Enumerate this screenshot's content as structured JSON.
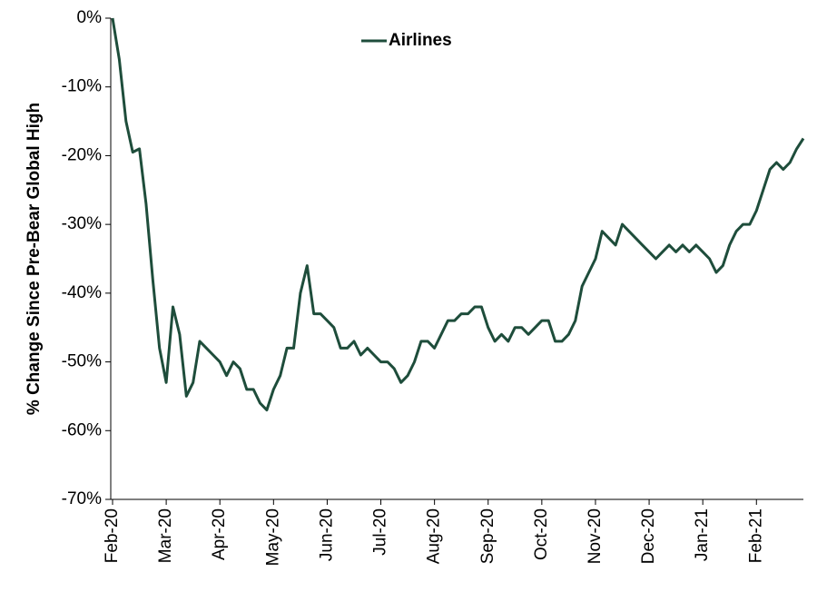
{
  "chart_data": {
    "type": "line",
    "y_label": "% Change Since Pre-Bear Global High",
    "categories": [
      "Feb-20",
      null,
      null,
      null,
      null,
      null,
      null,
      null,
      "Mar-20",
      null,
      null,
      null,
      null,
      null,
      null,
      null,
      "Apr-20",
      null,
      null,
      null,
      null,
      null,
      null,
      null,
      "May-20",
      null,
      null,
      null,
      null,
      null,
      null,
      null,
      "Jun-20",
      null,
      null,
      null,
      null,
      null,
      null,
      null,
      "Jul-20",
      null,
      null,
      null,
      null,
      null,
      null,
      null,
      "Aug-20",
      null,
      null,
      null,
      null,
      null,
      null,
      null,
      "Sep-20",
      null,
      null,
      null,
      null,
      null,
      null,
      null,
      "Oct-20",
      null,
      null,
      null,
      null,
      null,
      null,
      null,
      "Nov-20",
      null,
      null,
      null,
      null,
      null,
      null,
      null,
      "Dec-20",
      null,
      null,
      null,
      null,
      null,
      null,
      null,
      "Jan-21",
      null,
      null,
      null,
      null,
      null,
      null,
      null,
      "Feb-21",
      null,
      null,
      null,
      null,
      null,
      null,
      null
    ],
    "series": [
      {
        "name": "Airlines",
        "color": "#1e4d3b",
        "values": [
          0,
          -6,
          -15,
          -19.5,
          -19,
          -27,
          -38,
          -48,
          -53,
          -42,
          -46,
          -55,
          -53,
          -47,
          -48,
          -49,
          -50,
          -52,
          -50,
          -51,
          -54,
          -54,
          -56,
          -57,
          -54,
          -52,
          -48,
          -48,
          -40,
          -36,
          -43,
          -43,
          -44,
          -45,
          -48,
          -48,
          -47,
          -49,
          -48,
          -49,
          -50,
          -50,
          -51,
          -53,
          -52,
          -50,
          -47,
          -47,
          -48,
          -46,
          -44,
          -44,
          -43,
          -43,
          -42,
          -42,
          -45,
          -47,
          -46,
          -47,
          -45,
          -45,
          -46,
          -45,
          -44,
          -44,
          -47,
          -47,
          -46,
          -44,
          -39,
          -37,
          -35,
          -31,
          -32,
          -33,
          -30,
          -31,
          -32,
          -33,
          -34,
          -35,
          -34,
          -33,
          -34,
          -33,
          -34,
          -33,
          -34,
          -35,
          -37,
          -36,
          -33,
          -31,
          -30,
          -30,
          -28,
          -25,
          -22,
          -21,
          -22,
          -21,
          -19,
          -17.5
        ]
      }
    ],
    "ylim": [
      -70,
      0
    ],
    "yticks": [
      {
        "value": 0,
        "label": "0%"
      },
      {
        "value": -10,
        "label": "-10%"
      },
      {
        "value": -20,
        "label": "-20%"
      },
      {
        "value": -30,
        "label": "-30%"
      },
      {
        "value": -40,
        "label": "-40%"
      },
      {
        "value": -50,
        "label": "-50%"
      },
      {
        "value": -60,
        "label": "-60%"
      },
      {
        "value": -70,
        "label": "-70%"
      }
    ],
    "legend": "top"
  }
}
